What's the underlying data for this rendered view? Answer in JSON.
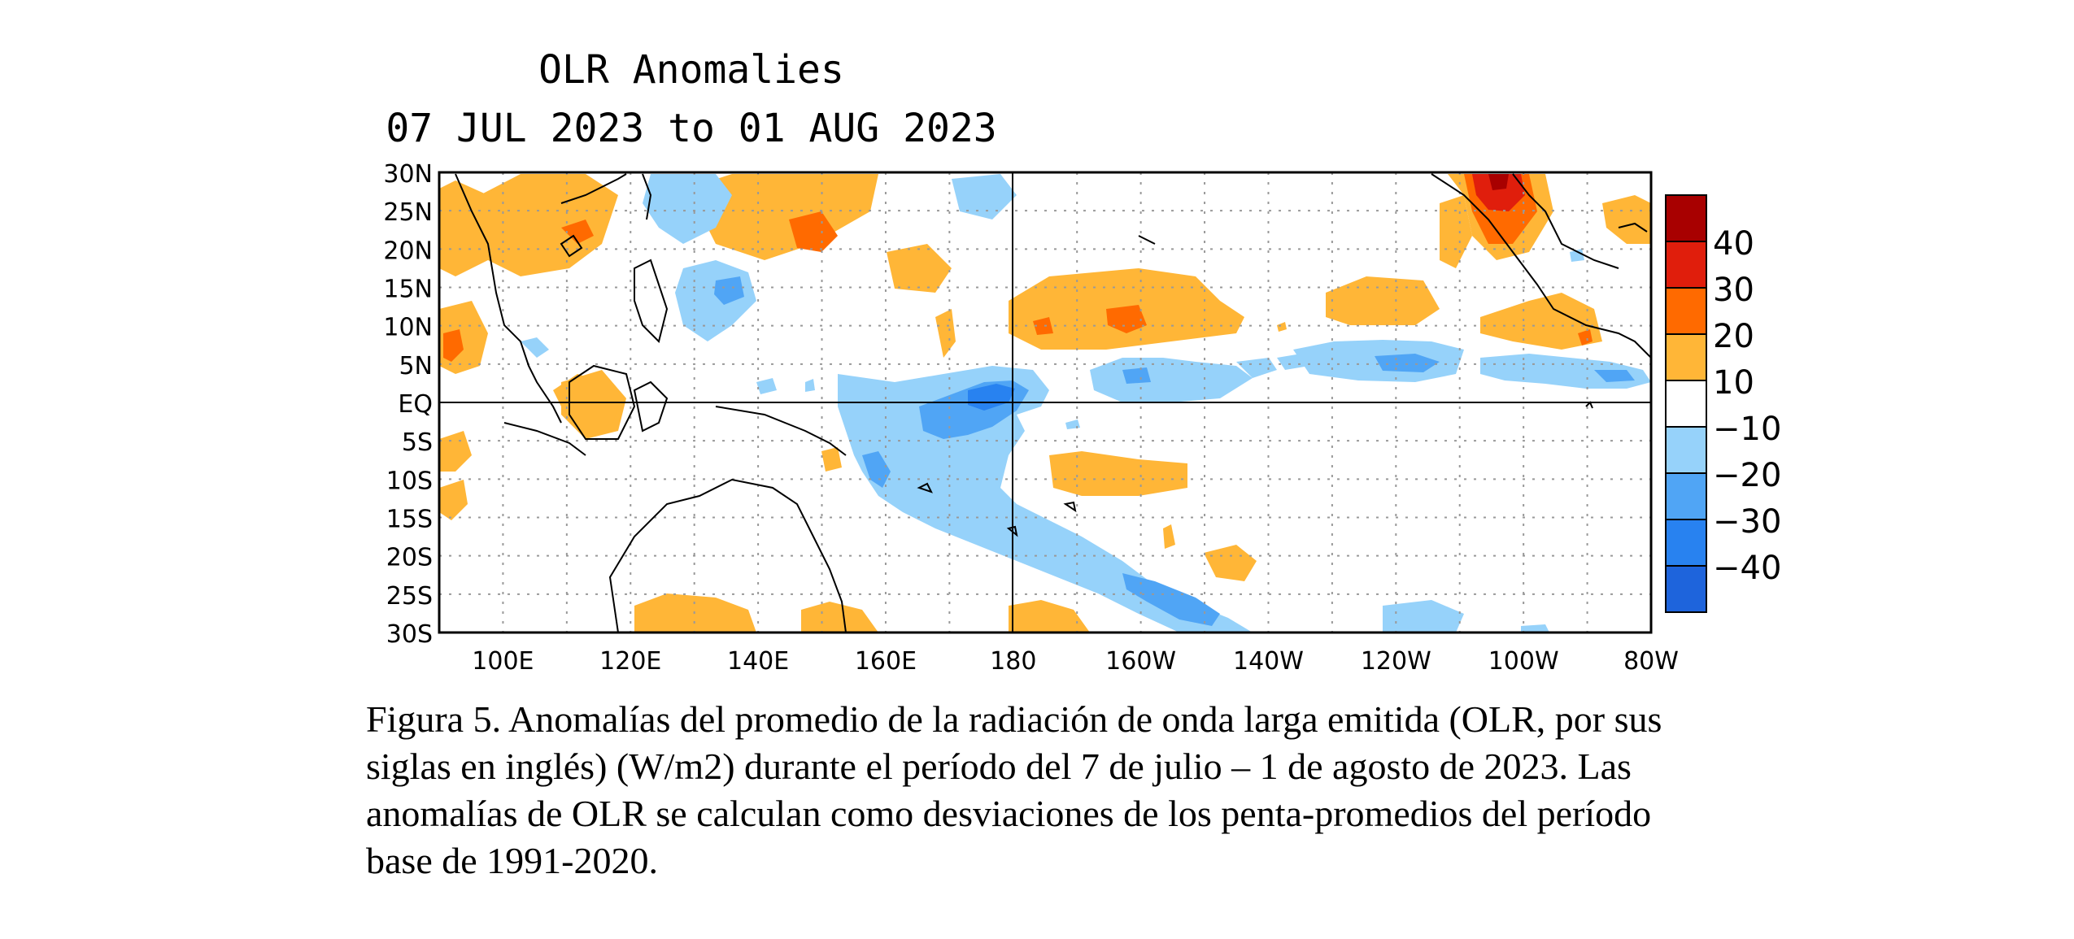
{
  "title": {
    "line1": "OLR Anomalies",
    "line2": "07 JUL 2023 to 01 AUG 2023"
  },
  "axes": {
    "lat_labels": [
      "30N",
      "25N",
      "20N",
      "15N",
      "10N",
      "5N",
      "EQ",
      "5S",
      "10S",
      "15S",
      "20S",
      "25S",
      "30S"
    ],
    "lon_labels": [
      "100E",
      "120E",
      "140E",
      "160E",
      "180",
      "160W",
      "140W",
      "120W",
      "100W",
      "80W"
    ],
    "lon_range_deg_east": [
      90,
      280
    ],
    "lat_range": [
      -30,
      30
    ],
    "grid": "dotted"
  },
  "colorbar": {
    "tick_labels": [
      "40",
      "30",
      "20",
      "10",
      "−10",
      "−20",
      "−30",
      "−40"
    ],
    "colors": [
      "#a80000",
      "#e01e0c",
      "#ff6a00",
      "#ffb637",
      "#ffffff",
      "#96d2fa",
      "#50a5f5",
      "#2882f0",
      "#1e64dc"
    ]
  },
  "colors": {
    "positive_10_20": "#ffb637",
    "positive_20_30": "#ff6a00",
    "positive_30_40": "#e01e0c",
    "positive_gt_40": "#a80000",
    "negative_10_20": "#96d2fa",
    "negative_20_30": "#50a5f5",
    "negative_30_40": "#2882f0",
    "coast": "#000000"
  },
  "caption": [
    "Figura 5. Anomalías del promedio de la radiación de onda larga emitida (OLR, por sus",
    "siglas en inglés) (W/m2) durante el período del 7 de julio – 1 de agosto de 2023.  Las",
    "anomalías de OLR se calculan como desviaciones de los penta-promedios del período",
    "base de 1991-2020."
  ]
}
